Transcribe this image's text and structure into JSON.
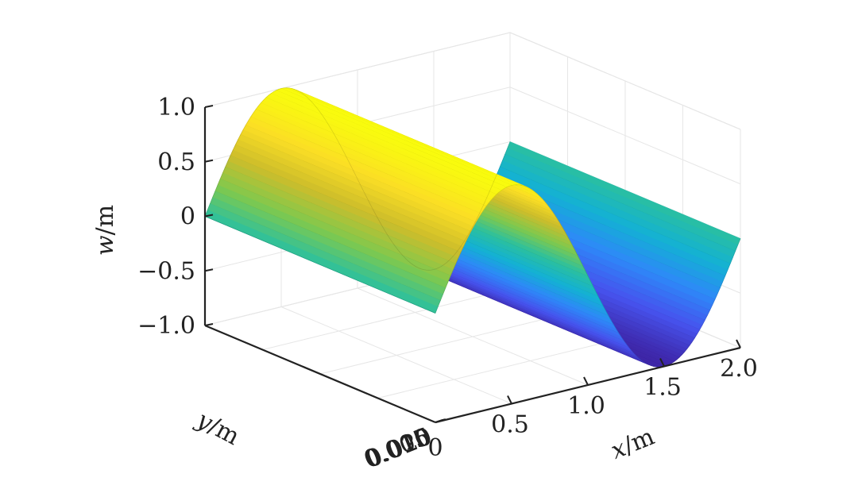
{
  "chart_data": {
    "type": "surface",
    "title": "",
    "xlabel": {
      "var": "x",
      "unit": "/m"
    },
    "ylabel": {
      "var": "y",
      "unit": "/m"
    },
    "zlabel": {
      "var": "w",
      "unit": "/m"
    },
    "xlim": [
      0,
      2.0
    ],
    "ylim": [
      0,
      0.02
    ],
    "zlim": [
      -1.0,
      1.0
    ],
    "x_ticks": [
      {
        "value": 0.5,
        "label": "0.5"
      },
      {
        "value": 1.0,
        "label": "1.0"
      },
      {
        "value": 1.5,
        "label": "1.5"
      },
      {
        "value": 2.0,
        "label": "2.0"
      }
    ],
    "y_ticks": [
      {
        "value": 0,
        "label": "0"
      },
      {
        "value": 0.005,
        "label": "0.005"
      },
      {
        "value": 0.01,
        "label": "0.010"
      },
      {
        "value": 0.015,
        "label": "0.015"
      },
      {
        "value": 0.02,
        "label": "0.020"
      }
    ],
    "z_ticks": [
      {
        "value": -1.0,
        "label": "−1.0"
      },
      {
        "value": -0.5,
        "label": "−0.5"
      },
      {
        "value": 0,
        "label": "0"
      },
      {
        "value": 0.5,
        "label": "0.5"
      },
      {
        "value": 1.0,
        "label": "1.0"
      }
    ],
    "surface": {
      "function": "w = sin(pi * x)",
      "x_samples": [
        0,
        0.1,
        0.2,
        0.3,
        0.4,
        0.5,
        0.6,
        0.7,
        0.8,
        0.9,
        1.0,
        1.1,
        1.2,
        1.3,
        1.4,
        1.5,
        1.6,
        1.7,
        1.8,
        1.9,
        2.0
      ],
      "w_values": [
        0,
        0.309,
        0.588,
        0.809,
        0.951,
        1.0,
        0.951,
        0.809,
        0.588,
        0.309,
        0,
        -0.309,
        -0.588,
        -0.809,
        -0.951,
        -1.0,
        -0.951,
        -0.809,
        -0.588,
        -0.309,
        0
      ],
      "colormap": [
        "#3e26a8",
        "#4653ee",
        "#2e88f8",
        "#13b1d4",
        "#2ac0a0",
        "#7fc94e",
        "#cdbd2b",
        "#fbde25",
        "#f9fb0e"
      ]
    },
    "grid": true
  }
}
